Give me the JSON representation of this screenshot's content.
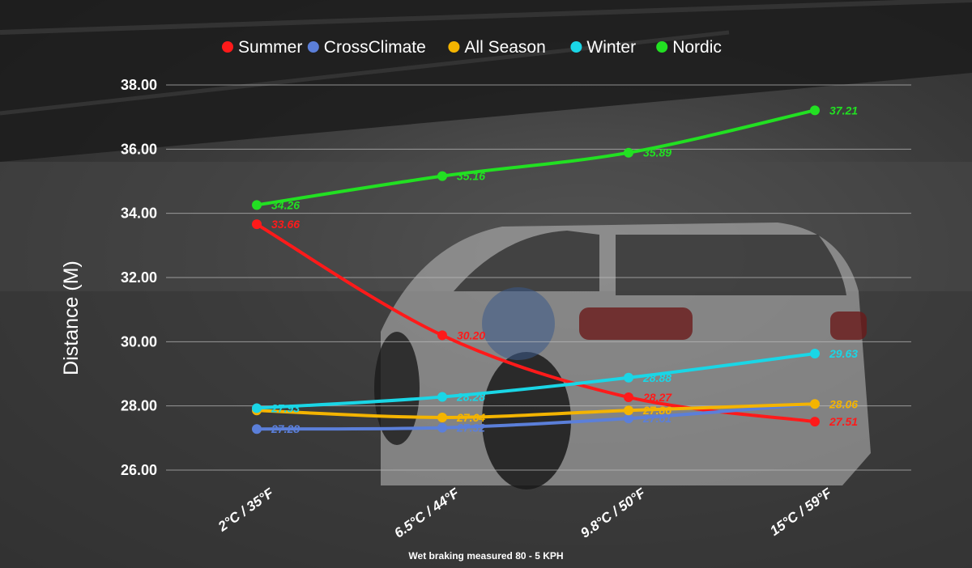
{
  "chart_data": {
    "type": "line",
    "title": "",
    "xlabel": "",
    "ylabel": "Distance (M)",
    "note": "Wet braking measured 80 - 5 KPH",
    "categories": [
      "2°C / 35°F",
      "6.5°C / 44°F",
      "9.8°C / 50°F",
      "15°C / 59°F"
    ],
    "ylim": [
      26,
      38
    ],
    "yticks": [
      "26.00",
      "28.00",
      "30.00",
      "32.00",
      "34.00",
      "36.00",
      "38.00"
    ],
    "grid": true,
    "legend_position": "top",
    "series": [
      {
        "name": "Summer",
        "color": "#ff1a1a",
        "values": [
          33.66,
          30.2,
          28.27,
          27.51
        ],
        "labels": [
          "33.66",
          "30.20",
          "28.27",
          "27.51"
        ]
      },
      {
        "name": "CrossClimate",
        "color": "#5b7fd9",
        "values": [
          27.28,
          27.32,
          27.61,
          28.06
        ],
        "labels": [
          "27.28",
          "27.32",
          "27.61",
          ""
        ]
      },
      {
        "name": "All Season",
        "color": "#f4b400",
        "values": [
          27.86,
          27.64,
          27.86,
          28.06
        ],
        "labels": [
          "",
          "27.64",
          "27.86",
          "28.06"
        ]
      },
      {
        "name": "Winter",
        "color": "#1ad6e6",
        "values": [
          27.93,
          28.28,
          28.88,
          29.63
        ],
        "labels": [
          "27.93",
          "28.28",
          "28.88",
          "29.63"
        ]
      },
      {
        "name": "Nordic",
        "color": "#22e022",
        "values": [
          34.26,
          35.16,
          35.89,
          37.21
        ],
        "labels": [
          "34.26",
          "35.16",
          "35.89",
          "37.21"
        ]
      }
    ]
  }
}
